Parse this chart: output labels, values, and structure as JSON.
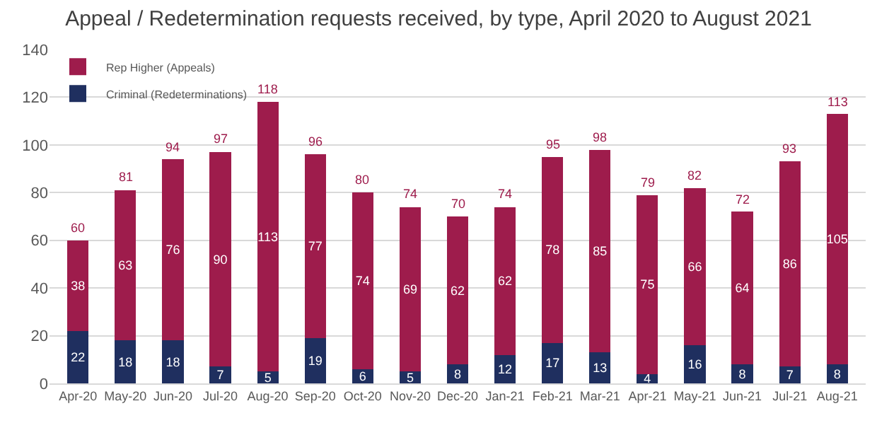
{
  "chart_data": {
    "type": "bar",
    "title": "Appeal / Redetermination requests received, by type, April 2020 to August 2021",
    "categories": [
      "Apr-20",
      "May-20",
      "Jun-20",
      "Jul-20",
      "Aug-20",
      "Sep-20",
      "Oct-20",
      "Nov-20",
      "Dec-20",
      "Jan-21",
      "Feb-21",
      "Mar-21",
      "Apr-21",
      "May-21",
      "Jun-21",
      "Jul-21",
      "Aug-21"
    ],
    "stacked": true,
    "series": [
      {
        "name": "Criminal (Redeterminations)",
        "color": "#1f2f5f",
        "values": [
          22,
          18,
          18,
          7,
          5,
          19,
          6,
          5,
          8,
          12,
          17,
          13,
          4,
          16,
          8,
          7,
          8
        ]
      },
      {
        "name": "Rep Higher (Appeals)",
        "color": "#9e1c4c",
        "values": [
          38,
          63,
          76,
          90,
          113,
          77,
          74,
          69,
          62,
          62,
          78,
          85,
          75,
          66,
          64,
          86,
          105
        ]
      }
    ],
    "totals": [
      "60",
      "81",
      "94",
      "97",
      "118",
      "96",
      "80",
      "74",
      "70",
      "74",
      "95",
      "98",
      "79",
      "82",
      "72",
      "93",
      "113"
    ],
    "data_labels": true,
    "ylim": [
      0,
      140
    ],
    "yticks": [
      0,
      20,
      40,
      60,
      80,
      100,
      120,
      140
    ],
    "grid": "y",
    "legend": "top left"
  }
}
